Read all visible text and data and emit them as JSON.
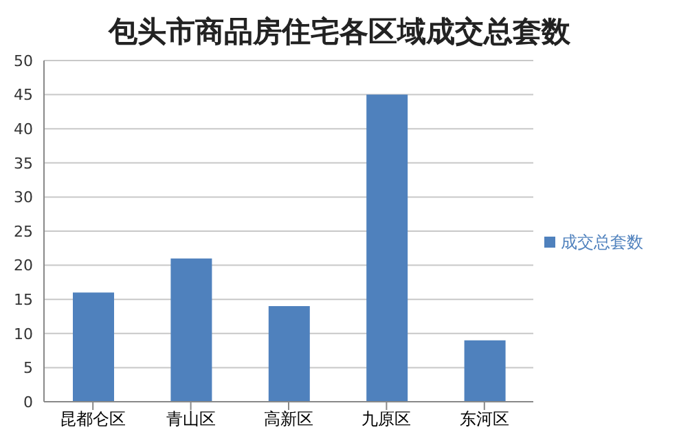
{
  "chart_data": {
    "type": "bar",
    "title": "包头市商品房住宅各区域成交总套数",
    "categories": [
      "昆都仑区",
      "青山区",
      "高新区",
      "九原区",
      "东河区"
    ],
    "series": [
      {
        "name": "成交总套数",
        "color": "#4f81bd",
        "values": [
          16,
          21,
          14,
          45,
          9
        ]
      }
    ],
    "ylim": [
      0,
      50
    ],
    "yticks": [
      0,
      5,
      10,
      15,
      20,
      25,
      30,
      35,
      40,
      45,
      50
    ],
    "grid": "y",
    "legend": "right"
  }
}
